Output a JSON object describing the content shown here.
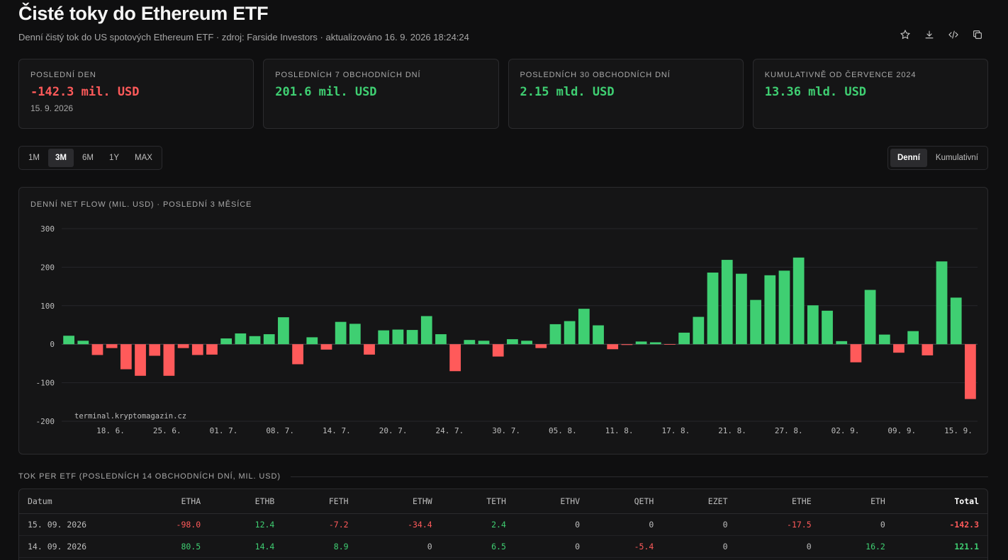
{
  "header": {
    "title": "Čisté toky do Ethereum ETF",
    "subtitle": "Denní čistý tok do US spotových Ethereum ETF · zdroj: Farside Investors · aktualizováno 16. 9. 2026 18:24:24",
    "icons": [
      "star-icon",
      "download-icon",
      "code-icon",
      "copy-icon"
    ]
  },
  "cards": [
    {
      "label": "Poslední den",
      "value": "-142.3 mil. USD",
      "sub": "15. 9. 2026",
      "tone": "neg"
    },
    {
      "label": "Posledních 7 obchodních dní",
      "value": "201.6 mil. USD",
      "sub": "",
      "tone": "pos"
    },
    {
      "label": "Posledních 30 obchodních dní",
      "value": "2.15 mld. USD",
      "sub": "",
      "tone": "pos"
    },
    {
      "label": "Kumulativně od července 2024",
      "value": "13.36 mld. USD",
      "sub": "",
      "tone": "pos"
    }
  ],
  "range_buttons": [
    "1M",
    "3M",
    "6M",
    "1Y",
    "MAX"
  ],
  "range_active": "3M",
  "mode_buttons": [
    "Denní",
    "Kumulativní"
  ],
  "mode_active": "Denní",
  "chart_title": "Denní net flow (mil. USD) · poslední 3 měsíce",
  "chart_data": {
    "type": "bar",
    "title": "Denní net flow (mil. USD) · poslední 3 měsíce",
    "ylim": [
      -200,
      300
    ],
    "yticks": [
      300,
      200,
      100,
      0,
      -100,
      -200
    ],
    "xtick_labels": [
      "18. 6.",
      "25. 6.",
      "01. 7.",
      "08. 7.",
      "14. 7.",
      "20. 7.",
      "24. 7.",
      "30. 7.",
      "05. 8.",
      "11. 8.",
      "17. 8.",
      "21. 8.",
      "27. 8.",
      "02. 9.",
      "09. 9.",
      "15. 9."
    ],
    "values": [
      22,
      9,
      -28,
      -10,
      -65,
      -82,
      -30,
      -82,
      -10,
      -28,
      -27,
      15,
      28,
      21,
      26,
      70,
      -52,
      18,
      -14,
      58,
      53,
      -27,
      36,
      38,
      37,
      73,
      26,
      -70,
      11,
      9,
      -32,
      13,
      9,
      -10,
      52,
      60,
      92,
      49,
      -13,
      -2,
      7,
      5,
      -1,
      30,
      71,
      186,
      219,
      183,
      115,
      179,
      191,
      225,
      101,
      87,
      8,
      -47,
      141,
      25,
      -22,
      34,
      -29,
      215,
      121,
      -142.3
    ],
    "positive_color": "#3fcf72",
    "negative_color": "#ff5a5a",
    "grid": true,
    "watermark": "terminal.kryptomagazin.cz"
  },
  "table": {
    "title": "Tok per ETF (posledních 14 obchodních dní, mil. USD)",
    "columns": [
      "Datum",
      "ETHA",
      "ETHB",
      "FETH",
      "ETHW",
      "TETH",
      "ETHV",
      "QETH",
      "EZET",
      "ETHE",
      "ETH",
      "Total"
    ],
    "rows": [
      [
        "15. 09. 2026",
        "-98.0",
        "12.4",
        "-7.2",
        "-34.4",
        "2.4",
        "0",
        "0",
        "0",
        "-17.5",
        "0",
        "-142.3"
      ],
      [
        "14. 09. 2026",
        "80.5",
        "14.4",
        "8.9",
        "0",
        "6.5",
        "0",
        "-5.4",
        "0",
        "0",
        "16.2",
        "121.1"
      ]
    ]
  }
}
